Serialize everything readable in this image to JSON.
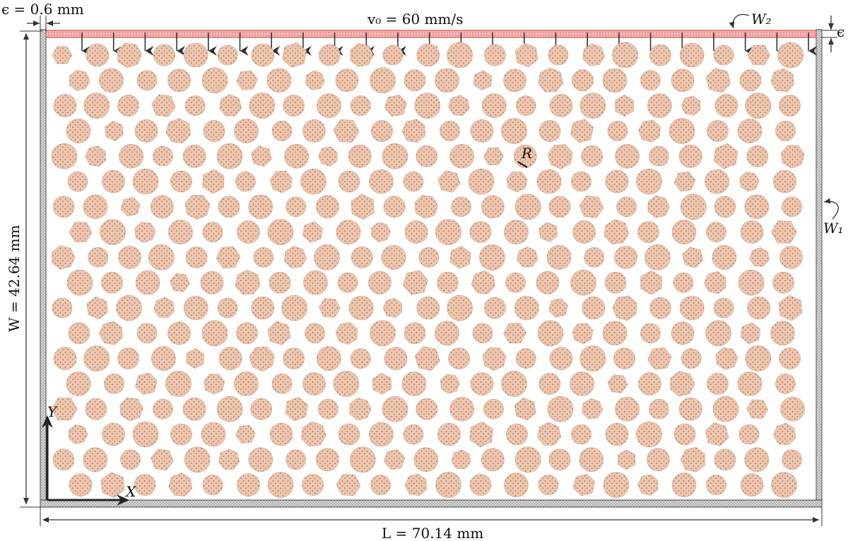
{
  "figure": {
    "description_labels": {
      "epsilon_dim": "ϵ = 0.6 mm",
      "velocity": "v₀ = 60 mm/s",
      "top_wall": "W₂",
      "side_wall": "W₁",
      "epsilon_right": "ϵ",
      "height_dim": "W = 42.64 mm",
      "length_dim": "L = 70.14 mm",
      "radius": "R",
      "axis_x": "X",
      "axis_y": "Y"
    },
    "params": {
      "length_mm": 70.14,
      "width_mm": 42.64,
      "wall_thickness_mm": 0.6,
      "velocity_mm_per_s": 60
    },
    "grains": {
      "rows": 18,
      "per_row_even": 23,
      "per_row_odd": 22
    },
    "arrows_count": 24,
    "colors": {
      "grain_fill": "#eec6ae",
      "grain_dots": "#8a4a3a",
      "top_wall": "#f6b5b8",
      "side_wall": "#c9c9c9",
      "dimension": "#333333"
    }
  }
}
